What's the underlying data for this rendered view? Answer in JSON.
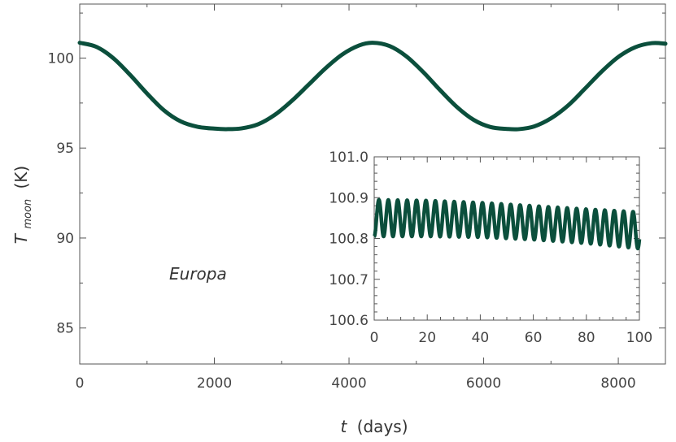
{
  "chart_data": [
    {
      "type": "line",
      "title": "",
      "xlabel_var": "t",
      "xlabel_unit": "(days)",
      "ylabel_var": "T",
      "ylabel_sub": "moon",
      "ylabel_unit": "(K)",
      "annotation": "Europa",
      "xlim": [
        0,
        8700
      ],
      "ylim": [
        83,
        103
      ],
      "xticks": [
        0,
        2000,
        4000,
        6000,
        8000
      ],
      "xtick_labels": [
        "0",
        "2000",
        "4000",
        "6000",
        "8000"
      ],
      "yticks": [
        85,
        90,
        95,
        100
      ],
      "ytick_labels": [
        "85",
        "90",
        "95",
        "100"
      ],
      "line_color": "#0b4f3c",
      "series": [
        {
          "x": [
            0,
            250,
            500,
            750,
            1000,
            1250,
            1500,
            1750,
            2000,
            2175,
            2400,
            2650,
            2900,
            3150,
            3400,
            3650,
            3900,
            4150,
            4350,
            4600,
            4850,
            5100,
            5350,
            5600,
            5850,
            6100,
            6350,
            6525,
            6750,
            7000,
            7250,
            7500,
            7750,
            8000,
            8250,
            8500,
            8700
          ],
          "y": [
            100.85,
            100.62,
            99.99,
            99.06,
            98.03,
            97.1,
            96.48,
            96.18,
            96.08,
            96.05,
            96.09,
            96.32,
            96.85,
            97.62,
            98.52,
            99.43,
            100.2,
            100.7,
            100.85,
            100.67,
            100.1,
            99.23,
            98.23,
            97.29,
            96.57,
            96.17,
            96.06,
            96.05,
            96.2,
            96.65,
            97.35,
            98.28,
            99.24,
            100.06,
            100.6,
            100.83,
            100.8
          ]
        }
      ]
    },
    {
      "type": "line",
      "title": "",
      "xlim": [
        0,
        100
      ],
      "ylim": [
        100.6,
        101.0
      ],
      "xticks": [
        0,
        20,
        40,
        60,
        80,
        100
      ],
      "xtick_labels": [
        "0",
        "20",
        "40",
        "60",
        "80",
        "100"
      ],
      "yticks": [
        100.6,
        100.7,
        100.8,
        100.9,
        101.0
      ],
      "ytick_labels": [
        "100.6",
        "100.7",
        "100.8",
        "100.9",
        "101.0"
      ],
      "line_color": "#0b4f3c",
      "oscillation_period_days": 3.55,
      "series": [
        {
          "x": [
            0,
            20,
            40,
            60,
            80,
            100
          ],
          "y_max": [
            100.895,
            100.893,
            100.888,
            100.88,
            100.872,
            100.865
          ],
          "y_min": [
            100.805,
            100.805,
            100.803,
            100.797,
            100.788,
            100.775
          ]
        }
      ]
    }
  ]
}
